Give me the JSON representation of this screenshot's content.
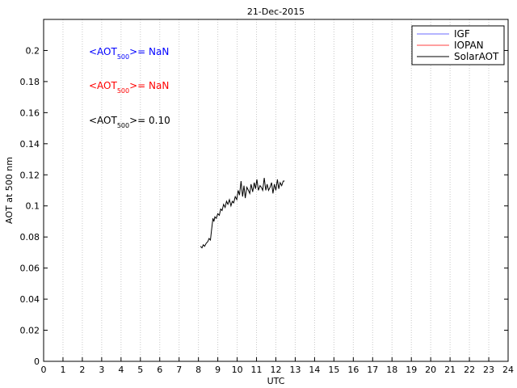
{
  "chart_data": {
    "type": "line",
    "title": "21-Dec-2015",
    "xlabel": "UTC",
    "ylabel": "AOT at 500 nm",
    "xlim": [
      0,
      24
    ],
    "ylim": [
      0,
      0.22
    ],
    "xticks": [
      1,
      2,
      3,
      4,
      5,
      6,
      7,
      8,
      9,
      10,
      11,
      12,
      13,
      14,
      15,
      16,
      17,
      18,
      19,
      20,
      21,
      22,
      23,
      24
    ],
    "yticks": [
      0,
      0.02,
      0.04,
      0.06,
      0.08,
      0.1,
      0.12,
      0.14,
      0.16,
      0.18,
      0.2
    ],
    "ytick_labels": [
      "0",
      "0.02",
      "0.04",
      "0.06",
      "0.08",
      "0.1",
      "0.12",
      "0.14",
      "0.16",
      "0.18",
      "0.2"
    ],
    "grid": "vertical dotted at each hour",
    "legend_position": "top-right",
    "series": [
      {
        "name": "IGF",
        "color": "#6b6bff",
        "x": [],
        "y": []
      },
      {
        "name": "IOPAN",
        "color": "#ff4040",
        "x": [],
        "y": []
      },
      {
        "name": "SolarAOT",
        "color": "#000000",
        "x": [
          8.1,
          8.18,
          8.25,
          8.32,
          8.4,
          8.48,
          8.55,
          8.62,
          8.68,
          8.75,
          8.8,
          8.85,
          8.92,
          9.0,
          9.08,
          9.15,
          9.22,
          9.3,
          9.38,
          9.45,
          9.52,
          9.6,
          9.68,
          9.75,
          9.82,
          9.9,
          9.98,
          10.05,
          10.12,
          10.2,
          10.28,
          10.35,
          10.42,
          10.5,
          10.58,
          10.65,
          10.72,
          10.8,
          10.88,
          10.95,
          11.02,
          11.1,
          11.18,
          11.25,
          11.32,
          11.4,
          11.48,
          11.55,
          11.62,
          11.7,
          11.78,
          11.85,
          11.92,
          12.0,
          12.08,
          12.15,
          12.22,
          12.3,
          12.38,
          12.45
        ],
        "y": [
          0.074,
          0.073,
          0.075,
          0.074,
          0.076,
          0.077,
          0.079,
          0.078,
          0.085,
          0.092,
          0.09,
          0.093,
          0.092,
          0.095,
          0.094,
          0.098,
          0.097,
          0.101,
          0.099,
          0.103,
          0.101,
          0.104,
          0.1,
          0.103,
          0.102,
          0.106,
          0.104,
          0.11,
          0.107,
          0.116,
          0.106,
          0.113,
          0.105,
          0.112,
          0.11,
          0.108,
          0.114,
          0.109,
          0.115,
          0.111,
          0.117,
          0.11,
          0.113,
          0.112,
          0.11,
          0.118,
          0.11,
          0.114,
          0.11,
          0.112,
          0.115,
          0.108,
          0.114,
          0.11,
          0.117,
          0.111,
          0.115,
          0.113,
          0.116,
          0.116
        ]
      }
    ],
    "annotations": [
      {
        "prefix": "<AOT",
        "subscript": "500",
        "suffix": ">=  NaN",
        "color": "#0000ff"
      },
      {
        "prefix": "<AOT",
        "subscript": "500",
        "suffix": ">=  NaN",
        "color": "#ff0000"
      },
      {
        "prefix": "<AOT",
        "subscript": "500",
        "suffix": ">= 0.10",
        "color": "#000000"
      }
    ]
  }
}
